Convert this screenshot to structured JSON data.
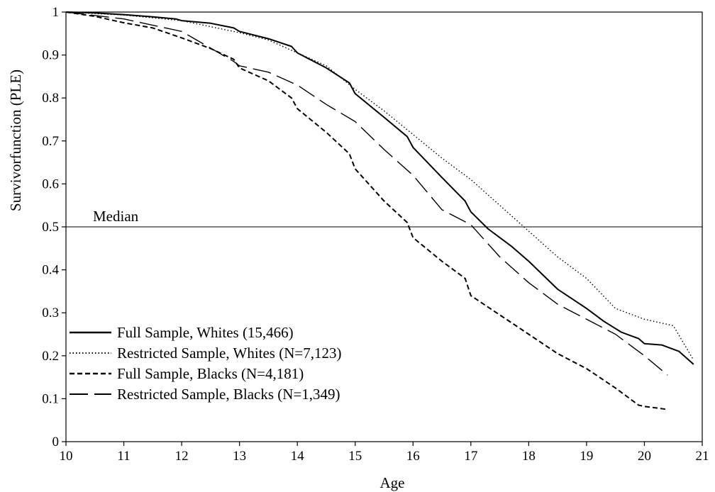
{
  "chart_data": {
    "type": "line",
    "title": "",
    "xlabel": "Age",
    "ylabel": "Survivorfunction (PLE)",
    "xlim": [
      10,
      21
    ],
    "ylim": [
      0,
      1
    ],
    "x_ticks": [
      10,
      11,
      12,
      13,
      14,
      15,
      16,
      17,
      18,
      19,
      20,
      21
    ],
    "y_ticks": [
      0,
      0.1,
      0.2,
      0.3,
      0.4,
      0.5,
      0.6,
      0.7,
      0.8,
      0.9,
      1
    ],
    "x_tick_labels": [
      "10",
      "11",
      "12",
      "13",
      "14",
      "15",
      "16",
      "17",
      "18",
      "19",
      "20",
      "21"
    ],
    "y_tick_labels": [
      "0",
      "0.1",
      "0.2",
      "0.3",
      "0.4",
      "0.5",
      "0.6",
      "0.7",
      "0.8",
      "0.9",
      "1"
    ],
    "grid": false,
    "legend_position": "bottom-left",
    "reference_lines": [
      {
        "label": "Median",
        "y": 0.5
      }
    ],
    "series": [
      {
        "name": "Full Sample, Whites (15,466)",
        "line_style": "solid",
        "color": "#000000",
        "x": [
          10,
          10.5,
          11,
          11.5,
          11.9,
          12,
          12.5,
          12.9,
          13,
          13.5,
          13.9,
          14,
          14.5,
          14.9,
          15,
          15.5,
          15.9,
          16,
          16.5,
          16.9,
          17,
          17.3,
          17.7,
          18,
          18.5,
          19,
          19.3,
          19.6,
          19.9,
          20,
          20.3,
          20.6,
          20.85
        ],
        "y": [
          1.0,
          0.998,
          0.994,
          0.989,
          0.984,
          0.98,
          0.974,
          0.963,
          0.955,
          0.938,
          0.92,
          0.905,
          0.87,
          0.835,
          0.81,
          0.755,
          0.71,
          0.685,
          0.615,
          0.56,
          0.535,
          0.495,
          0.455,
          0.42,
          0.355,
          0.31,
          0.28,
          0.255,
          0.24,
          0.228,
          0.225,
          0.21,
          0.18
        ]
      },
      {
        "name": "Restricted Sample, Whites (N=7,123)",
        "line_style": "dotted",
        "color": "#000000",
        "x": [
          10,
          11,
          12,
          13,
          13.5,
          14,
          14.5,
          15,
          15.5,
          16,
          16.5,
          17,
          17.5,
          18,
          18.5,
          19,
          19.5,
          20,
          20.5,
          20.85
        ],
        "y": [
          1.0,
          0.993,
          0.98,
          0.952,
          0.935,
          0.905,
          0.875,
          0.82,
          0.77,
          0.715,
          0.66,
          0.61,
          0.55,
          0.49,
          0.43,
          0.38,
          0.31,
          0.285,
          0.27,
          0.19
        ]
      },
      {
        "name": "Full Sample, Blacks (N=4,181)",
        "line_style": "dashed",
        "color": "#000000",
        "x": [
          10,
          10.5,
          11,
          11.5,
          12,
          12.5,
          12.9,
          13,
          13.5,
          13.9,
          14,
          14.5,
          14.9,
          15,
          15.5,
          15.9,
          16,
          16.5,
          16.9,
          17,
          17.5,
          18,
          18.5,
          19,
          19.5,
          19.9,
          20,
          20.4
        ],
        "y": [
          1.0,
          0.99,
          0.975,
          0.963,
          0.94,
          0.915,
          0.89,
          0.87,
          0.84,
          0.8,
          0.775,
          0.72,
          0.67,
          0.635,
          0.56,
          0.51,
          0.475,
          0.42,
          0.38,
          0.34,
          0.295,
          0.25,
          0.205,
          0.17,
          0.125,
          0.085,
          0.082,
          0.075
        ]
      },
      {
        "name": "Restricted Sample, Blacks (N=1,349)",
        "line_style": "long-dashed",
        "color": "#000000",
        "x": [
          10,
          11,
          12,
          12.9,
          13,
          13.5,
          14,
          14.5,
          15,
          15.5,
          16,
          16.5,
          17,
          17.5,
          18,
          18.5,
          19,
          19.5,
          20,
          20.4
        ],
        "y": [
          1.0,
          0.984,
          0.955,
          0.885,
          0.875,
          0.86,
          0.83,
          0.785,
          0.745,
          0.68,
          0.62,
          0.54,
          0.505,
          0.43,
          0.37,
          0.32,
          0.285,
          0.25,
          0.2,
          0.155
        ]
      }
    ]
  }
}
